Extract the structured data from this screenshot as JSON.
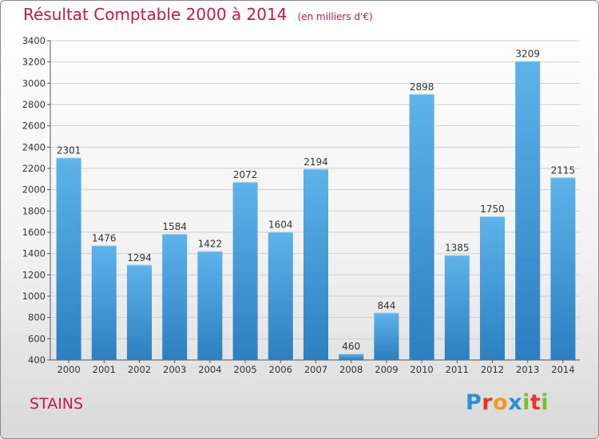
{
  "chart_data": {
    "type": "bar",
    "title": "Résultat Comptable 2000 à 2014",
    "unit": "(en milliers d'€)",
    "categories": [
      "2000",
      "2001",
      "2002",
      "2003",
      "2004",
      "2005",
      "2006",
      "2007",
      "2008",
      "2009",
      "2010",
      "2011",
      "2012",
      "2013",
      "2014"
    ],
    "values": [
      2301,
      1476,
      1294,
      1584,
      1422,
      2072,
      1604,
      2194,
      460,
      844,
      2898,
      1385,
      1750,
      3209,
      2115
    ],
    "ylim": [
      400,
      3400
    ],
    "yticks": [
      400,
      600,
      800,
      1000,
      1200,
      1400,
      1600,
      1800,
      2000,
      2200,
      2400,
      2600,
      2800,
      3000,
      3200,
      3400
    ],
    "grid": true,
    "bar_color_light": "#5eb3ea",
    "bar_color_dark": "#2c7fc0"
  },
  "place_name": "STAINS",
  "brand": {
    "text": "Proxiti",
    "letter_colors": [
      "#2f8fd6",
      "#e6352b",
      "#f29a1f",
      "#2f8fd6",
      "#7bbd2f",
      "#e6352b",
      "#7bbd2f"
    ]
  }
}
